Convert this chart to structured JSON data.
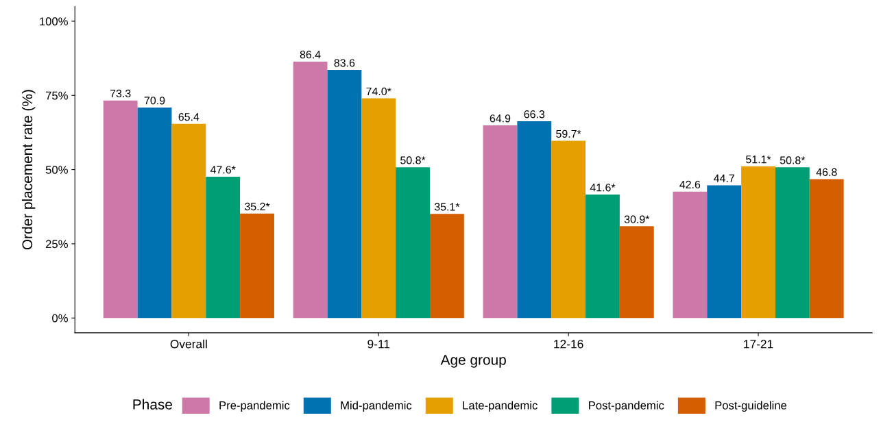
{
  "chart_data": {
    "type": "bar",
    "xlabel": "Age group",
    "ylabel": "Order placement rate (%)",
    "legend_title": "Phase",
    "categories": [
      "Overall",
      "9-11",
      "12-16",
      "17-21"
    ],
    "series": [
      {
        "name": "Pre-pandemic",
        "color": "#cc79a7",
        "values": [
          73.3,
          86.4,
          64.9,
          42.6
        ],
        "value_labels": [
          "73.3",
          "86.4",
          "64.9",
          "42.6"
        ]
      },
      {
        "name": "Mid-pandemic",
        "color": "#0072b2",
        "values": [
          70.9,
          83.6,
          66.3,
          44.7
        ],
        "value_labels": [
          "70.9",
          "83.6",
          "66.3",
          "44.7"
        ]
      },
      {
        "name": "Late-pandemic",
        "color": "#e69f00",
        "values": [
          65.4,
          74.0,
          59.7,
          51.1
        ],
        "value_labels": [
          "65.4",
          "74.0*",
          "59.7*",
          "51.1*"
        ]
      },
      {
        "name": "Post-pandemic",
        "color": "#009e73",
        "values": [
          47.6,
          50.8,
          41.6,
          50.8
        ],
        "value_labels": [
          "47.6*",
          "50.8*",
          "41.6*",
          "50.8*"
        ]
      },
      {
        "name": "Post-guideline",
        "color": "#d55e00",
        "values": [
          35.2,
          35.1,
          30.9,
          46.8
        ],
        "value_labels": [
          "35.2*",
          "35.1*",
          "30.9*",
          "46.8"
        ]
      }
    ],
    "ylim": [
      -5,
      105
    ],
    "yticks": [
      {
        "value": 0,
        "label": "0%"
      },
      {
        "value": 25,
        "label": "25%"
      },
      {
        "value": 50,
        "label": "50%"
      },
      {
        "value": 75,
        "label": "75%"
      },
      {
        "value": 100,
        "label": "100%"
      }
    ],
    "grid": false,
    "legend": "bottom"
  }
}
